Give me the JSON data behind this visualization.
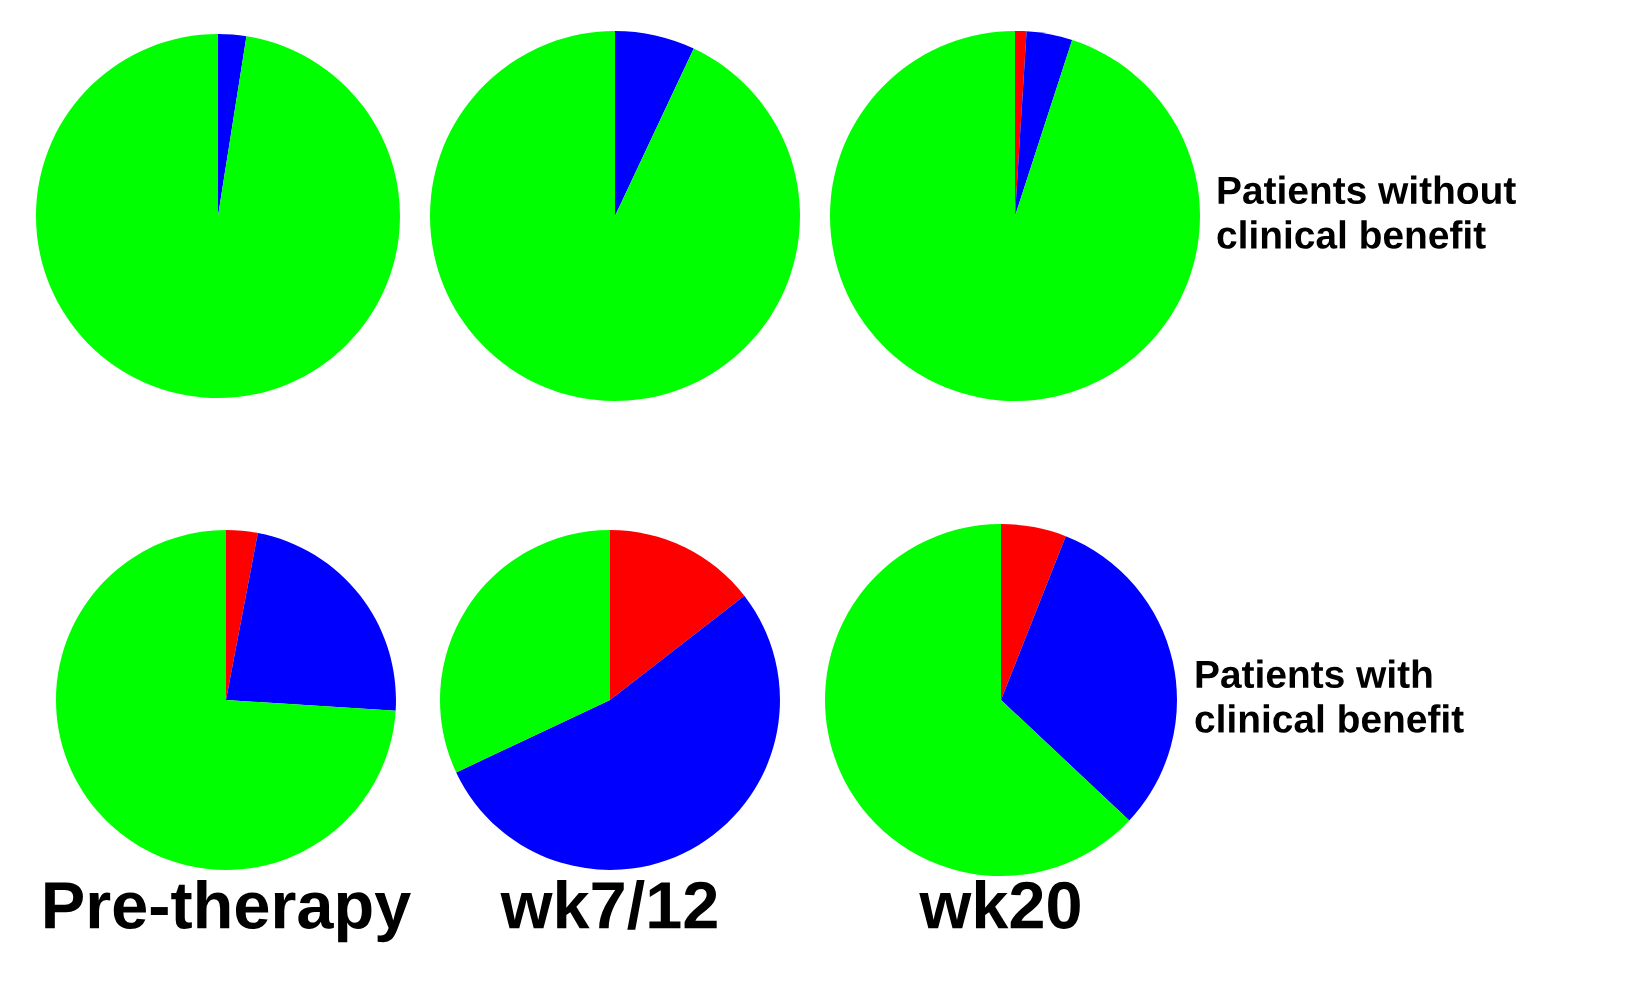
{
  "chart_data": [
    {
      "type": "pie",
      "categories": [
        null,
        null
      ],
      "values": [
        2.5,
        97.5
      ],
      "colors": [
        "#0000ff",
        "#00ff00"
      ]
    },
    {
      "type": "pie",
      "categories": [
        null,
        null
      ],
      "values": [
        7,
        93
      ],
      "colors": [
        "#0000ff",
        "#00ff00"
      ]
    },
    {
      "type": "pie",
      "categories": [
        null,
        null,
        null
      ],
      "values": [
        1,
        4,
        95
      ],
      "colors": [
        "#ff0000",
        "#0000ff",
        "#00ff00"
      ],
      "annotations": [
        "Patients without\nclinical benefit"
      ]
    },
    {
      "type": "pie",
      "categories": [
        null,
        null,
        null
      ],
      "values": [
        3,
        23,
        74
      ],
      "colors": [
        "#ff0000",
        "#0000ff",
        "#00ff00"
      ],
      "xlabel": "Pre-therapy"
    },
    {
      "type": "pie",
      "categories": [
        null,
        null,
        null
      ],
      "values": [
        14.5,
        53.5,
        32
      ],
      "colors": [
        "#ff0000",
        "#0000ff",
        "#00ff00"
      ],
      "xlabel": "wk7/12"
    },
    {
      "type": "pie",
      "categories": [
        null,
        null,
        null
      ],
      "values": [
        6,
        31,
        63
      ],
      "colors": [
        "#ff0000",
        "#0000ff",
        "#00ff00"
      ],
      "xlabel": "wk20",
      "annotations": [
        "Patients with\nclinical benefit"
      ]
    }
  ]
}
